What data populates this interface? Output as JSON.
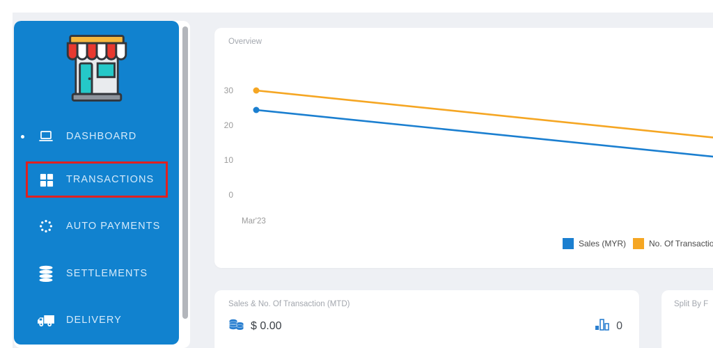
{
  "sidebar": {
    "items": [
      {
        "label": "DASHBOARD",
        "icon": "laptop",
        "active": true
      },
      {
        "label": "TRANSACTIONS",
        "icon": "grid",
        "annotated": true
      },
      {
        "label": "AUTO PAYMENTS",
        "icon": "spinner"
      },
      {
        "label": "SETTLEMENTS",
        "icon": "database"
      },
      {
        "label": "DELIVERY",
        "icon": "truck"
      }
    ]
  },
  "overview": {
    "title": "Overview"
  },
  "chart_data": {
    "type": "line",
    "title": "Overview",
    "x_labels_visible": [
      "Mar'23"
    ],
    "yticks": [
      30,
      20,
      10,
      0
    ],
    "ylim": [
      0,
      33
    ],
    "grid": false,
    "legend_position": "bottom-right",
    "series": [
      {
        "name": "Sales (MYR)",
        "color": "#1b7fd0",
        "start_value": 24.4,
        "value_at_right_crop": 11.0
      },
      {
        "name": "No. Of Transaction",
        "color": "#f5a623",
        "start_value": 30.0,
        "value_at_right_crop": 16.5
      }
    ]
  },
  "cards": {
    "sales_mtd": {
      "title": "Sales & No. Of Transaction (MTD)",
      "amount": "$ 0.00",
      "count": "0"
    },
    "split": {
      "title": "Split By F"
    }
  },
  "colors": {
    "sidebar": "#1182cf",
    "content_bg": "#eef0f4",
    "annotation": "#e02020",
    "line_blue": "#1b7fd0",
    "line_orange": "#f5a623"
  }
}
